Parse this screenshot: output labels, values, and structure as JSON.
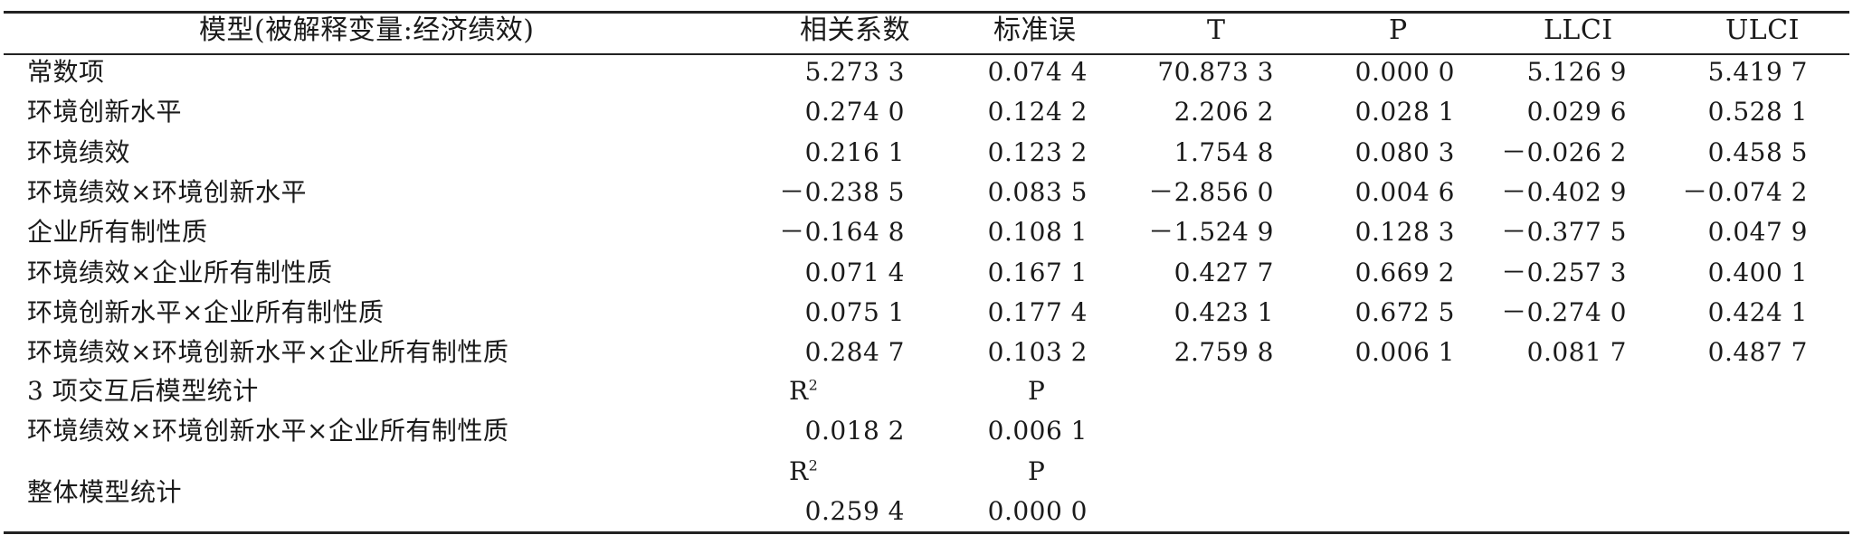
{
  "header": {
    "model": "模型(被解释变量:经济绩效)",
    "coef": "相关系数",
    "se": "标准误",
    "t": "T",
    "p": "P",
    "llci": "LLCI",
    "ulci": "ULCI"
  },
  "rows": [
    {
      "label": "常数项",
      "coef": "5.273 3",
      "se": "0.074 4",
      "t": "70.873 3",
      "p": "0.000 0",
      "llci": "5.126 9",
      "ulci": "5.419 7"
    },
    {
      "label": "环境创新水平",
      "coef": "0.274 0",
      "se": "0.124 2",
      "t": "2.206 2",
      "p": "0.028 1",
      "llci": "0.029 6",
      "ulci": "0.528 1"
    },
    {
      "label": "环境绩效",
      "coef": "0.216 1",
      "se": "0.123 2",
      "t": "1.754 8",
      "p": "0.080 3",
      "llci": "－0.026 2",
      "ulci": "0.458 5"
    },
    {
      "label": "环境绩效×环境创新水平",
      "coef": "－0.238 5",
      "se": "0.083 5",
      "t": "－2.856 0",
      "p": "0.004 6",
      "llci": "－0.402 9",
      "ulci": "－0.074 2"
    },
    {
      "label": "企业所有制性质",
      "coef": "－0.164 8",
      "se": "0.108 1",
      "t": "－1.524 9",
      "p": "0.128 3",
      "llci": "－0.377 5",
      "ulci": "0.047 9"
    },
    {
      "label": "环境绩效×企业所有制性质",
      "coef": "0.071 4",
      "se": "0.167 1",
      "t": "0.427 7",
      "p": "0.669 2",
      "llci": "－0.257 3",
      "ulci": "0.400 1"
    },
    {
      "label": "环境创新水平×企业所有制性质",
      "coef": "0.075 1",
      "se": "0.177 4",
      "t": "0.423 1",
      "p": "0.672 5",
      "llci": "－0.274 0",
      "ulci": "0.424 1"
    },
    {
      "label": "环境绩效×环境创新水平×企业所有制性质",
      "coef": "0.284 7",
      "se": "0.103 2",
      "t": "2.759 8",
      "p": "0.006 1",
      "llci": "0.081 7",
      "ulci": "0.487 7"
    }
  ],
  "interaction_stats": {
    "title": "3 项交互后模型统计",
    "r2_label": "R",
    "r2_sup": "2",
    "p_label": "P",
    "label": "环境绩效×环境创新水平×企业所有制性质",
    "r2": "0.018 2",
    "p": "0.006 1"
  },
  "overall_stats": {
    "title": "整体模型统计",
    "r2_label": "R",
    "r2_sup": "2",
    "p_label": "P",
    "r2": "0.259 4",
    "p": "0.000 0"
  }
}
